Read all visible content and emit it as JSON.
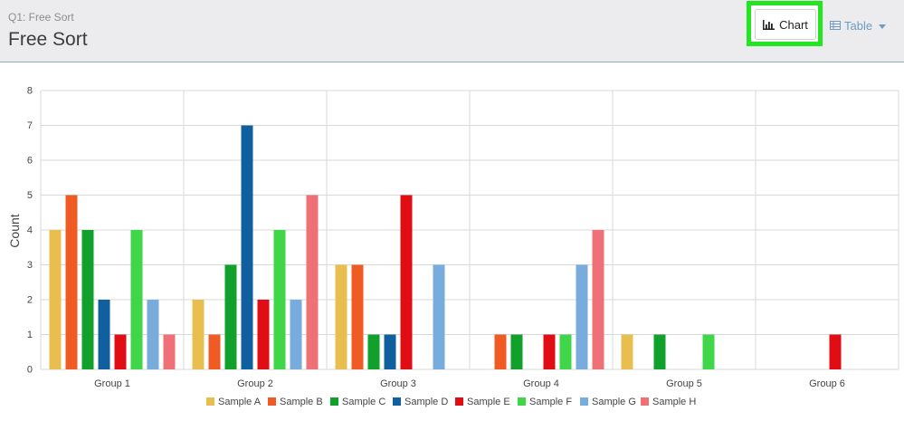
{
  "header": {
    "question_label": "Q1: Free Sort",
    "title": "Free Sort",
    "chart_button": "Chart",
    "table_button": "Table"
  },
  "colors": {
    "Sample A": "#e8bf4f",
    "Sample B": "#f05a23",
    "Sample C": "#12a02c",
    "Sample D": "#1060a0",
    "Sample E": "#e00d14",
    "Sample F": "#3fd64a",
    "Sample G": "#78acdc",
    "Sample H": "#ef7076"
  },
  "chart_data": {
    "type": "bar",
    "ylabel": "Count",
    "xlabel": "",
    "ylim": [
      0,
      8
    ],
    "yticks": [
      0,
      1,
      2,
      3,
      4,
      5,
      6,
      7,
      8
    ],
    "grid": true,
    "legend_position": "bottom",
    "categories": [
      "Group 1",
      "Group 2",
      "Group 3",
      "Group 4",
      "Group 5",
      "Group 6"
    ],
    "series": [
      {
        "name": "Sample A",
        "values": [
          4,
          2,
          3,
          0,
          1,
          0
        ]
      },
      {
        "name": "Sample B",
        "values": [
          5,
          1,
          3,
          1,
          0,
          0
        ]
      },
      {
        "name": "Sample C",
        "values": [
          4,
          3,
          1,
          1,
          1,
          0
        ]
      },
      {
        "name": "Sample D",
        "values": [
          2,
          7,
          1,
          0,
          0,
          0
        ]
      },
      {
        "name": "Sample E",
        "values": [
          1,
          2,
          5,
          1,
          0,
          1
        ]
      },
      {
        "name": "Sample F",
        "values": [
          4,
          4,
          0,
          1,
          1,
          0
        ]
      },
      {
        "name": "Sample G",
        "values": [
          2,
          2,
          3,
          3,
          0,
          0
        ]
      },
      {
        "name": "Sample H",
        "values": [
          1,
          5,
          0,
          4,
          0,
          0
        ]
      }
    ]
  }
}
